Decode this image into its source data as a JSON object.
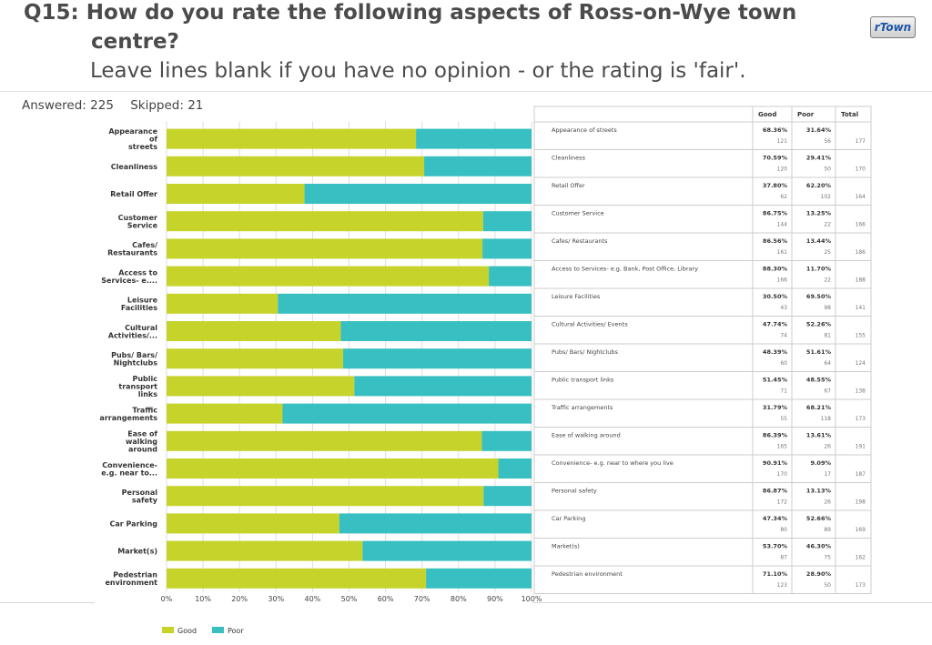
{
  "header": {
    "title": "Q15: How do you rate the following aspects of Ross-on-Wye town centre?",
    "subtitle": "Leave lines blank if you have no opinion - or the rating is 'fair'.",
    "logo_text": "rTown"
  },
  "stats": {
    "answered": "Answered: 225",
    "skipped": "Skipped: 21"
  },
  "colors": {
    "good": "#c5d32b",
    "poor": "#37bfc2",
    "grid": "#dddddd",
    "table_border": "#cccccc"
  },
  "chart_data": {
    "type": "bar",
    "orientation": "horizontal",
    "stacked": true,
    "categories": [
      "Appearance of streets",
      "Cleanliness",
      "Retail Offer",
      "Customer Service",
      "Cafes/ Restaurants",
      "Access to Services- e....",
      "Leisure Facilities",
      "Cultural Activities/...",
      "Pubs/ Bars/ Nightclubs",
      "Public transport links",
      "Traffic arrangements",
      "Ease of walking around",
      "Convenience- e.g. near to...",
      "Personal safety",
      "Car Parking",
      "Market(s)",
      "Pedestrian environment"
    ],
    "category_lines": [
      [
        "Appearance",
        "of",
        "streets"
      ],
      [
        "Cleanliness"
      ],
      [
        "Retail Offer"
      ],
      [
        "Customer",
        "Service"
      ],
      [
        "Cafes/",
        "Restaurants"
      ],
      [
        "Access to",
        "Services- e...."
      ],
      [
        "Leisure",
        "Facilities"
      ],
      [
        "Cultural",
        "Activities/..."
      ],
      [
        "Pubs/ Bars/",
        "Nightclubs"
      ],
      [
        "Public",
        "transport",
        "links"
      ],
      [
        "Traffic",
        "arrangements"
      ],
      [
        "Ease of",
        "walking",
        "around"
      ],
      [
        "Convenience-",
        "e.g. near to..."
      ],
      [
        "Personal",
        "safety"
      ],
      [
        "Car Parking"
      ],
      [
        "Market(s)"
      ],
      [
        "Pedestrian",
        "environment"
      ]
    ],
    "series": [
      {
        "name": "Good",
        "values": [
          68.36,
          70.59,
          37.8,
          86.75,
          86.56,
          88.3,
          30.5,
          47.74,
          48.39,
          51.45,
          31.79,
          86.39,
          90.91,
          86.87,
          47.34,
          53.7,
          71.1
        ]
      },
      {
        "name": "Poor",
        "values": [
          31.64,
          29.41,
          62.2,
          13.25,
          13.44,
          11.7,
          69.5,
          52.26,
          51.61,
          48.55,
          68.21,
          13.61,
          9.09,
          13.13,
          52.66,
          46.3,
          28.9
        ]
      }
    ],
    "xlim": [
      0,
      100
    ],
    "x_ticks": [
      "0%",
      "10%",
      "20%",
      "30%",
      "40%",
      "50%",
      "60%",
      "70%",
      "80%",
      "90%",
      "100%"
    ],
    "legend": {
      "position": "bottom-left",
      "entries": [
        "Good",
        "Poor"
      ]
    }
  },
  "table": {
    "headers": [
      "",
      "Good",
      "Poor",
      "Total"
    ],
    "rows": [
      {
        "label": "Appearance of streets",
        "good_pct": "68.36%",
        "good_n": "121",
        "poor_pct": "31.64%",
        "poor_n": "56",
        "total": "177"
      },
      {
        "label": "Cleanliness",
        "good_pct": "70.59%",
        "good_n": "120",
        "poor_pct": "29.41%",
        "poor_n": "50",
        "total": "170"
      },
      {
        "label": "Retail Offer",
        "good_pct": "37.80%",
        "good_n": "62",
        "poor_pct": "62.20%",
        "poor_n": "102",
        "total": "164"
      },
      {
        "label": "Customer Service",
        "good_pct": "86.75%",
        "good_n": "144",
        "poor_pct": "13.25%",
        "poor_n": "22",
        "total": "166"
      },
      {
        "label": "Cafes/ Restaurants",
        "good_pct": "86.56%",
        "good_n": "161",
        "poor_pct": "13.44%",
        "poor_n": "25",
        "total": "186"
      },
      {
        "label": "Access to Services- e.g. Bank, Post Office, Library",
        "good_pct": "88.30%",
        "good_n": "166",
        "poor_pct": "11.70%",
        "poor_n": "22",
        "total": "188"
      },
      {
        "label": "Leisure Facilities",
        "good_pct": "30.50%",
        "good_n": "43",
        "poor_pct": "69.50%",
        "poor_n": "98",
        "total": "141"
      },
      {
        "label": "Cultural Activities/ Events",
        "good_pct": "47.74%",
        "good_n": "74",
        "poor_pct": "52.26%",
        "poor_n": "81",
        "total": "155"
      },
      {
        "label": "Pubs/ Bars/ Nightclubs",
        "good_pct": "48.39%",
        "good_n": "60",
        "poor_pct": "51.61%",
        "poor_n": "64",
        "total": "124"
      },
      {
        "label": "Public transport links",
        "good_pct": "51.45%",
        "good_n": "71",
        "poor_pct": "48.55%",
        "poor_n": "67",
        "total": "138"
      },
      {
        "label": "Traffic arrangements",
        "good_pct": "31.79%",
        "good_n": "55",
        "poor_pct": "68.21%",
        "poor_n": "118",
        "total": "173"
      },
      {
        "label": "Ease of walking around",
        "good_pct": "86.39%",
        "good_n": "165",
        "poor_pct": "13.61%",
        "poor_n": "26",
        "total": "191"
      },
      {
        "label": "Convenience- e.g. near to where you live",
        "good_pct": "90.91%",
        "good_n": "170",
        "poor_pct": "9.09%",
        "poor_n": "17",
        "total": "187"
      },
      {
        "label": "Personal safety",
        "good_pct": "86.87%",
        "good_n": "172",
        "poor_pct": "13.13%",
        "poor_n": "26",
        "total": "198"
      },
      {
        "label": "Car Parking",
        "good_pct": "47.34%",
        "good_n": "80",
        "poor_pct": "52.66%",
        "poor_n": "89",
        "total": "169"
      },
      {
        "label": "Market(s)",
        "good_pct": "53.70%",
        "good_n": "87",
        "poor_pct": "46.30%",
        "poor_n": "75",
        "total": "162"
      },
      {
        "label": "Pedestrian environment",
        "good_pct": "71.10%",
        "good_n": "123",
        "poor_pct": "28.90%",
        "poor_n": "50",
        "total": "173"
      }
    ]
  }
}
